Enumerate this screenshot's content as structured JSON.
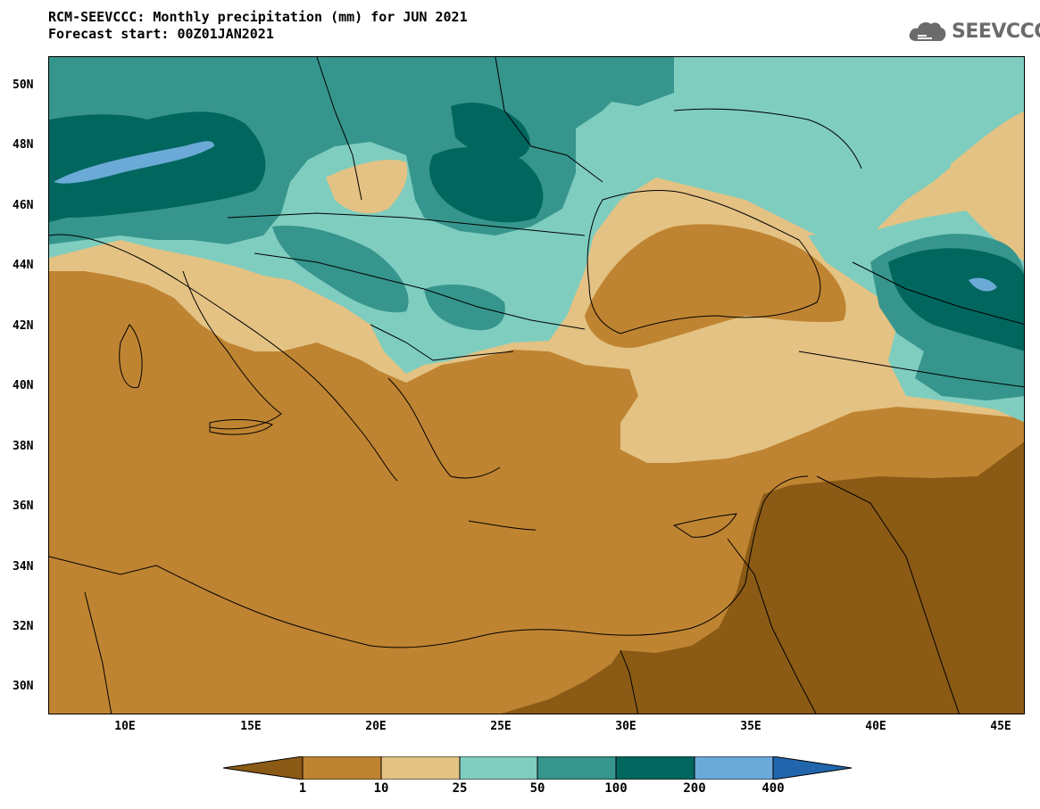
{
  "header": {
    "title": "RCM-SEEVCCC: Monthly precipitation (mm) for JUN 2021",
    "subtitle": "Forecast start: 00Z01JAN2021"
  },
  "logo": {
    "text": "SEEVCCC",
    "icon": "cloud-icon"
  },
  "map": {
    "lat_ticks": [
      "50N",
      "48N",
      "46N",
      "44N",
      "42N",
      "40N",
      "38N",
      "36N",
      "34N",
      "32N",
      "30N"
    ],
    "lon_ticks": [
      "10E",
      "15E",
      "20E",
      "25E",
      "30E",
      "35E",
      "40E",
      "45E"
    ]
  },
  "colorbar": {
    "labels": [
      "1",
      "10",
      "25",
      "50",
      "100",
      "200",
      "400"
    ],
    "colors": [
      "#8B5A15",
      "#BF8432",
      "#E3C283",
      "#7FCDBF",
      "#36958D",
      "#00665E",
      "#6BAAD7",
      "#2166AC"
    ]
  }
}
